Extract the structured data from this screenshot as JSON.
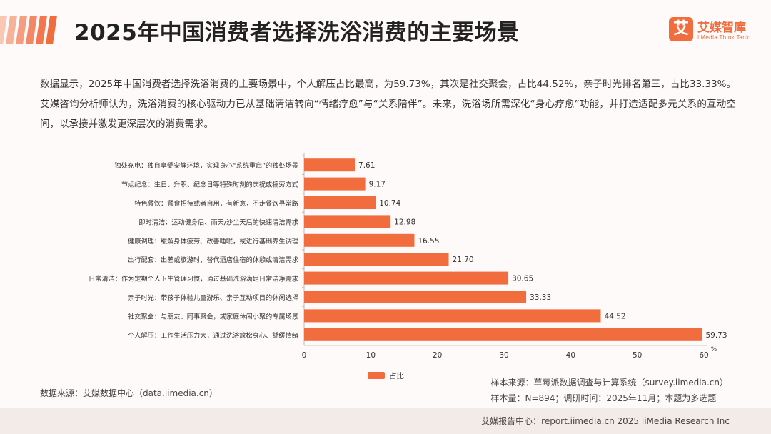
{
  "header": {
    "title": "2025年中国消费者选择洗浴消费的主要场景",
    "brand_color": "#f26d3d"
  },
  "logo": {
    "mark": "艾",
    "name": "艾媒智库",
    "sub": "iiMedia Think Tank"
  },
  "description": "数据显示，2025年中国消费者选择洗浴消费的主要场景中，个人解压占比最高，为59.73%，其次是社交聚会，占比44.52%，亲子时光排名第三，占比33.33%。艾媒咨询分析师认为，洗浴消费的核心驱动力已从基础清洁转向“情绪疗愈”与“关系陪伴”。未来，洗浴场所需深化“身心疗愈”功能，并打造适配多元关系的互动空间，以承接并激发更深层次的消费需求。",
  "chart_data": {
    "type": "bar",
    "orientation": "horizontal",
    "categories": [
      "独处充电：独自享受安静环境，实现身心“系统重启”的独处场景",
      "节点纪念：生日、升职、纪念日等特殊时刻的庆祝或犒劳方式",
      "特色餐饮：餐食招待或者自用，有新意，不走餐饮寻常路",
      "即时清洁：运动健身后、雨天/沙尘天后的快速清洁需求",
      "健康调理：缓解身体疲劳、改善睡眠，或进行基础养生调理",
      "出行配套：出差或旅游时，替代酒店住宿的休憩或清洁需求",
      "日常清洁：作为定期个人卫生管理习惯，通过基础洗浴满足日常洁净需求",
      "亲子时光：带孩子体验儿童游乐、亲子互动项目的休闲选择",
      "社交聚会：与朋友、同事聚会，或家庭休闲小聚的专属场景",
      "个人解压：工作生活压力大，通过洗浴放松身心、舒缓情绪"
    ],
    "series": [
      {
        "name": "占比",
        "values": [
          7.61,
          9.17,
          10.74,
          12.98,
          16.55,
          21.7,
          30.65,
          33.33,
          44.52,
          59.73
        ],
        "labels": [
          "7.61",
          "9.17",
          "10.74",
          "12.98",
          "16.55",
          "21.70",
          "30.65",
          "33.33",
          "44.52",
          "59.73"
        ]
      }
    ],
    "xlim": [
      0,
      60
    ],
    "xticks": [
      0,
      10,
      20,
      30,
      40,
      50,
      60
    ],
    "unit_label": "%",
    "color": "#f26d3d",
    "legend_position": "bottom",
    "grid": false
  },
  "footer": {
    "source_left": "数据来源：艾媒数据中心（data.iimedia.cn）",
    "sample_source": "样本来源：草莓派数据调查与计算系统（survey.iimedia.cn）",
    "sample_size": "样本量：N=894；调研时间：2025年11月；本题为多选题"
  },
  "bottom_bar": {
    "text": "艾媒报告中心：report.iimedia.cn  2025 iiMedia Research Inc"
  }
}
